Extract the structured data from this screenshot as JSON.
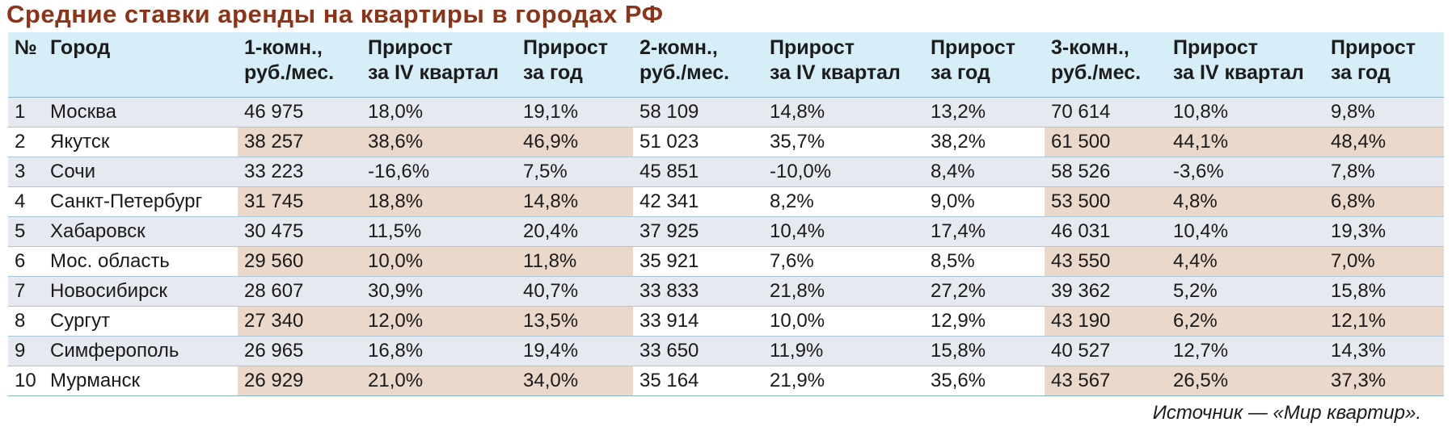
{
  "title": "Средние ставки аренды на квартиры в городах РФ",
  "columns": [
    "№",
    "Город",
    "1-комн.,\nруб./мес.",
    "Прирост\nза IV квартал",
    "Прирост\nза год",
    "2-комн.,\nруб./мес.",
    "Прирост\nза IV квартал",
    "Прирост\nза год",
    "3-комн.,\nруб./мес.",
    "Прирост\nза IV квартал",
    "Прирост\nза год"
  ],
  "rows": [
    [
      "1",
      "Москва",
      "46 975",
      "18,0%",
      "19,1%",
      "58 109",
      "14,8%",
      "13,2%",
      "70 614",
      "10,8%",
      "9,8%"
    ],
    [
      "2",
      "Якутск",
      "38 257",
      "38,6%",
      "46,9%",
      "51 023",
      "35,7%",
      "38,2%",
      "61 500",
      "44,1%",
      "48,4%"
    ],
    [
      "3",
      "Сочи",
      "33 223",
      "-16,6%",
      "7,5%",
      "45 851",
      "-10,0%",
      "8,4%",
      "58 526",
      "-3,6%",
      "7,8%"
    ],
    [
      "4",
      "Санкт-Петербург",
      "31 745",
      "18,8%",
      "14,8%",
      "42 341",
      "8,2%",
      "9,0%",
      "53 500",
      "4,8%",
      "6,8%"
    ],
    [
      "5",
      "Хабаровск",
      "30 475",
      "11,5%",
      "20,4%",
      "37 925",
      "10,4%",
      "17,4%",
      "46 031",
      "10,4%",
      "19,3%"
    ],
    [
      "6",
      "Мос. область",
      "29 560",
      "10,0%",
      "11,8%",
      "35 921",
      "7,6%",
      "8,5%",
      "43 550",
      "4,4%",
      "7,0%"
    ],
    [
      "7",
      "Новосибирск",
      "28 607",
      "30,9%",
      "40,7%",
      "33 833",
      "21,8%",
      "27,2%",
      "39 362",
      "5,2%",
      "15,8%"
    ],
    [
      "8",
      "Сургут",
      "27 340",
      "12,0%",
      "13,5%",
      "33 914",
      "10,0%",
      "12,9%",
      "43 190",
      "6,2%",
      "12,1%"
    ],
    [
      "9",
      "Симферополь",
      "26 965",
      "16,8%",
      "19,4%",
      "33 650",
      "11,9%",
      "15,8%",
      "40 527",
      "12,7%",
      "14,3%"
    ],
    [
      "10",
      "Мурманск",
      "26 929",
      "21,0%",
      "34,0%",
      "35 164",
      "21,9%",
      "35,6%",
      "43 567",
      "26,5%",
      "37,3%"
    ]
  ],
  "source": "Источник — «Мир квартир».",
  "colors": {
    "title": "#8c3318",
    "header_bg": "#d5eef8",
    "odd_row_bg": "#e6e9ef",
    "even_row_highlight": "#ead8ca"
  }
}
